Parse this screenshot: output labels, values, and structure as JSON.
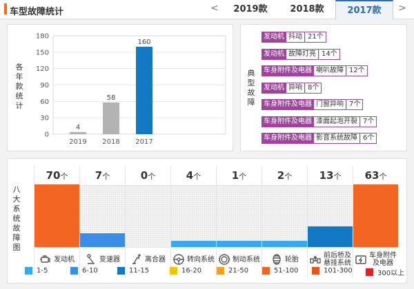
{
  "header": {
    "title": "车型故障统计",
    "prev_icon": "<",
    "next_icon": ">",
    "year_tabs": [
      "2019款",
      "2018款",
      "2017款"
    ],
    "active_tab": "2017款"
  },
  "yearly": {
    "label": [
      "各",
      "年",
      "款",
      "统",
      "计"
    ],
    "chart_data": {
      "type": "bar",
      "categories": [
        "2019",
        "2018",
        "2017"
      ],
      "values": [
        4,
        58,
        160
      ],
      "colors": [
        "#b3b3b3",
        "#b3b3b3",
        "#1479c4"
      ],
      "ylim": [
        0,
        180
      ],
      "yticks": [
        0,
        30,
        60,
        90,
        120,
        150,
        180
      ],
      "grid": true
    }
  },
  "typical": {
    "label": [
      "典",
      "型",
      "故",
      "障"
    ],
    "faults": [
      {
        "tag": "发动机",
        "text": "抖动",
        "count": "21个"
      },
      {
        "tag": "发动机",
        "text": "故障灯亮",
        "count": "14个"
      },
      {
        "tag": "车身附件及电器",
        "text": "喇叭故障",
        "count": "12个"
      },
      {
        "tag": "发动机",
        "text": "异响",
        "count": "8个"
      },
      {
        "tag": "车身附件及电器",
        "text": "门窗异响",
        "count": "7个"
      },
      {
        "tag": "车身附件及电器",
        "text": "漆面起泡开裂",
        "count": "7个"
      },
      {
        "tag": "车身附件及电器",
        "text": "影音系统故障",
        "count": "6个"
      }
    ],
    "tag_color": "#a0439e"
  },
  "systems": {
    "label": [
      "八",
      "大",
      "系",
      "统",
      "故",
      "障",
      "图"
    ],
    "unit": "个",
    "items": [
      {
        "name": "发动机",
        "name2": "",
        "count": 70,
        "level": 1.0,
        "color": "#f26522",
        "icon": "engine-icon"
      },
      {
        "name": "变速器",
        "name2": "",
        "count": 7,
        "level": 0.22,
        "color": "#3a8ee6",
        "icon": "gear-shift-icon"
      },
      {
        "name": "离合器",
        "name2": "",
        "count": 0,
        "level": 0,
        "color": "#3a8ee6",
        "icon": "clutch-icon"
      },
      {
        "name": "转向系统",
        "name2": "",
        "count": 4,
        "level": 0.1,
        "color": "#36a9f0",
        "icon": "steering-wheel-icon"
      },
      {
        "name": "制动系统",
        "name2": "",
        "count": 1,
        "level": 0.1,
        "color": "#36a9f0",
        "icon": "brake-icon"
      },
      {
        "name": "轮胎",
        "name2": "",
        "count": 2,
        "level": 0.1,
        "color": "#36a9f0",
        "icon": "tire-icon"
      },
      {
        "name": "前后桥及",
        "name2": "悬挂系统",
        "count": 13,
        "level": 0.33,
        "color": "#1479c4",
        "icon": "suspension-icon"
      },
      {
        "name": "车身附件",
        "name2": "及电器",
        "count": 63,
        "level": 1.0,
        "color": "#f26522",
        "icon": "electrical-icon"
      }
    ]
  },
  "legend": [
    {
      "label": "1-5",
      "color": "#36a9f0"
    },
    {
      "label": "6-10",
      "color": "#3a8ee6"
    },
    {
      "label": "11-15",
      "color": "#1479c4"
    },
    {
      "label": "16-20",
      "color": "#f5c400"
    },
    {
      "label": "21-50",
      "color": "#f7a021"
    },
    {
      "label": "51-100",
      "color": "#f26522"
    },
    {
      "label": "101-300",
      "color": "#e8541c"
    },
    {
      "label": "300以上",
      "color": "#e31e24"
    }
  ]
}
